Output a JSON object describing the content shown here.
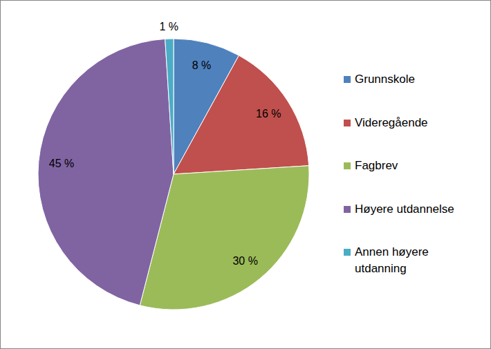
{
  "chart_data": {
    "type": "pie",
    "categories": [
      "Grunnskole",
      "Videregående",
      "Fagbrev",
      "Høyere utdannelse",
      "Annen høyere utdanning"
    ],
    "values": [
      8,
      16,
      30,
      45,
      1
    ],
    "value_labels": [
      "8 %",
      "16 %",
      "30 %",
      "45 %",
      "1 %"
    ],
    "colors": [
      "#4f81bd",
      "#c0504d",
      "#9bbb59",
      "#8064a2",
      "#4bacc6"
    ],
    "legend": "right",
    "data_labels": true
  }
}
